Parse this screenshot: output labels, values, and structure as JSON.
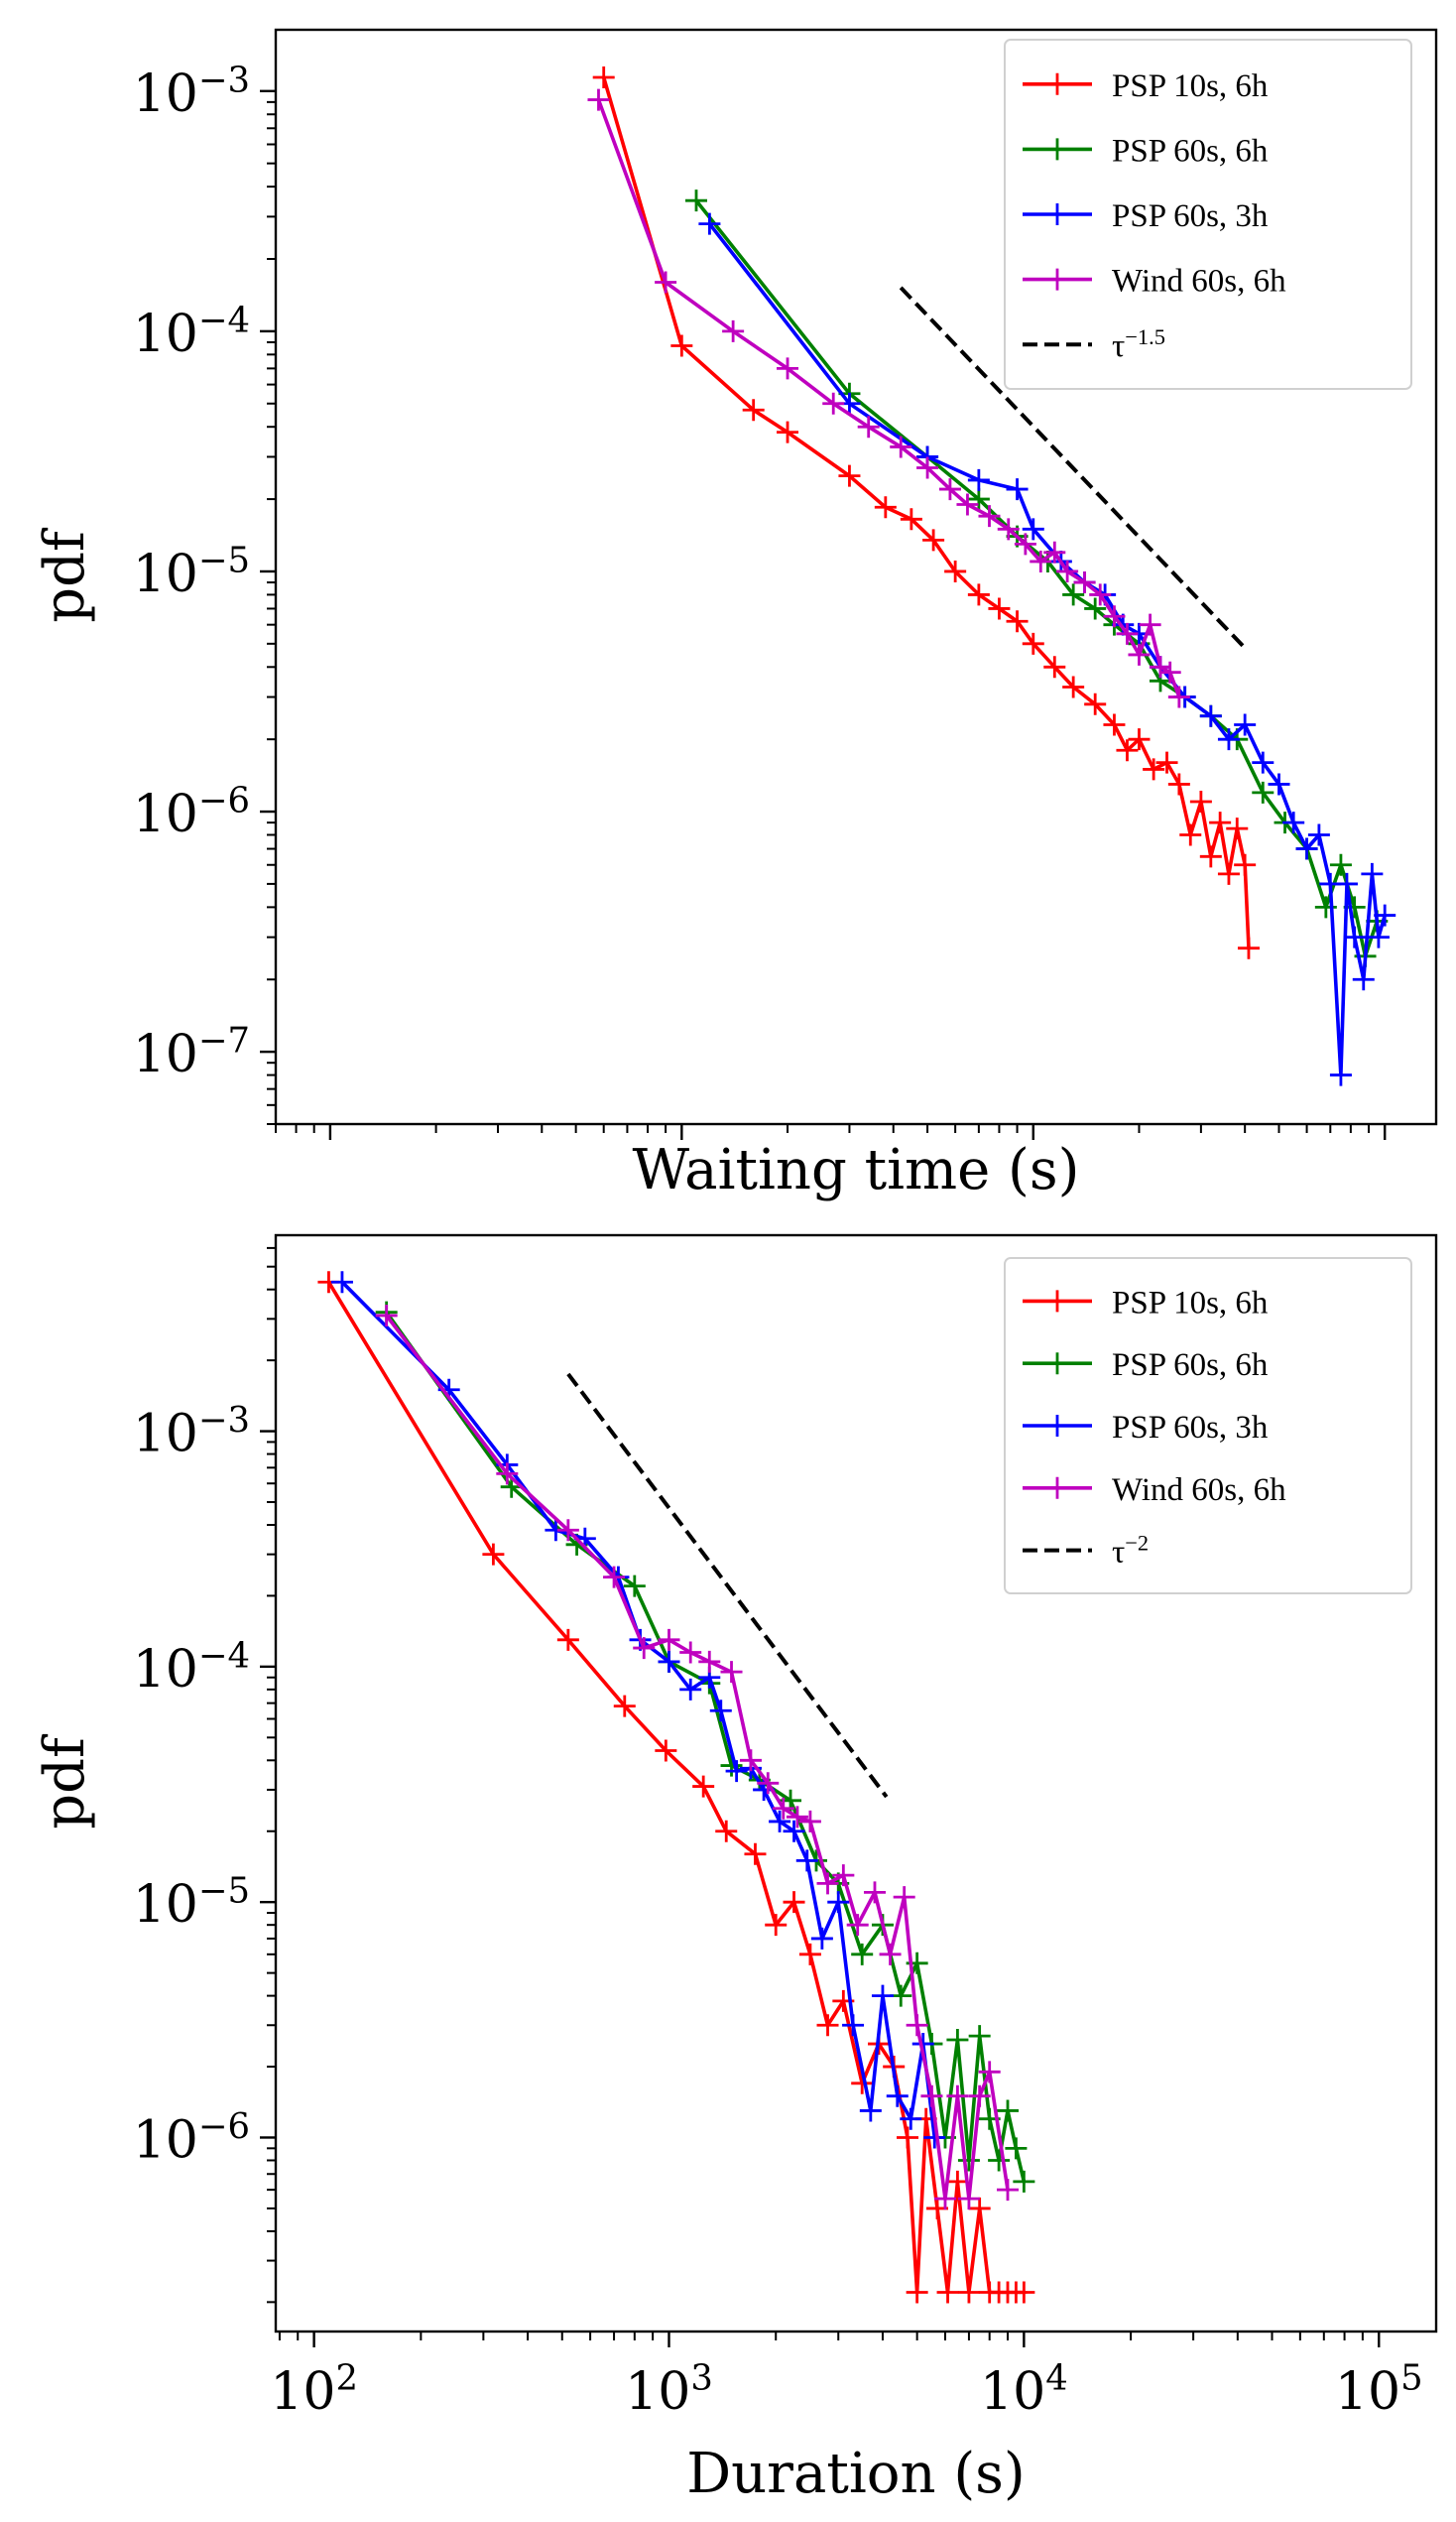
{
  "chart_data": [
    {
      "type": "line",
      "panel": "top",
      "xlabel": "Waiting time (s)",
      "ylabel": "pdf",
      "xscale": "log",
      "yscale": "log",
      "xlim": [
        70,
        140000
      ],
      "ylim": [
        5e-08,
        0.0018
      ],
      "x_ticks": [
        {
          "value": 100,
          "label": ""
        },
        {
          "value": 1000,
          "label": ""
        },
        {
          "value": 10000,
          "label": ""
        },
        {
          "value": 100000,
          "label": ""
        }
      ],
      "y_ticks": [
        {
          "value": 0.001,
          "base": "10",
          "exp": "−3"
        },
        {
          "value": 0.0001,
          "base": "10",
          "exp": "−4"
        },
        {
          "value": 1e-05,
          "base": "10",
          "exp": "−5"
        },
        {
          "value": 1e-06,
          "base": "10",
          "exp": "−6"
        },
        {
          "value": 1e-07,
          "base": "10",
          "exp": "−7"
        }
      ],
      "legend_position": "top-right",
      "series": [
        {
          "name": "PSP 10s, 6h",
          "color": "#ff0000",
          "x": [
            600,
            1000,
            1600,
            2000,
            3000,
            3800,
            4500,
            5200,
            6000,
            7000,
            8000,
            9000,
            10000,
            11500,
            13000,
            15000,
            17000,
            18500,
            20000,
            22000,
            24000,
            26000,
            28000,
            30000,
            32000,
            34000,
            36000,
            38000,
            40000,
            41000
          ],
          "y": [
            0.00114,
            8.7e-05,
            4.7e-05,
            3.8e-05,
            2.5e-05,
            1.85e-05,
            1.65e-05,
            1.35e-05,
            1e-05,
            8e-06,
            7e-06,
            6.2e-06,
            5e-06,
            4e-06,
            3.3e-06,
            2.8e-06,
            2.3e-06,
            1.8e-06,
            2e-06,
            1.5e-06,
            1.6e-06,
            1.3e-06,
            8e-07,
            1.1e-06,
            6.5e-07,
            9e-07,
            5.5e-07,
            8.5e-07,
            6e-07,
            2.7e-07
          ]
        },
        {
          "name": "PSP 60s, 6h",
          "color": "#008000",
          "x": [
            1100,
            3000,
            5000,
            7000,
            9000,
            11000,
            13000,
            15000,
            17000,
            20000,
            23000,
            27000,
            32000,
            38000,
            45000,
            52000,
            60000,
            68000,
            75000,
            82000,
            88000,
            95000
          ],
          "y": [
            0.00035,
            5.5e-05,
            3e-05,
            2e-05,
            1.4e-05,
            1.1e-05,
            8e-06,
            7e-06,
            6e-06,
            5e-06,
            3.5e-06,
            3e-06,
            2.5e-06,
            2e-06,
            1.2e-06,
            9e-07,
            7e-07,
            4e-07,
            6e-07,
            4e-07,
            2.5e-07,
            3.5e-07
          ]
        },
        {
          "name": "PSP 60s, 3h",
          "color": "#0000ff",
          "x": [
            1200,
            3000,
            5000,
            7000,
            9000,
            10000,
            12000,
            14000,
            16000,
            18000,
            20000,
            23000,
            27000,
            32000,
            36000,
            40000,
            45000,
            50000,
            55000,
            60000,
            65000,
            70000,
            75000,
            78000,
            82000,
            87000,
            92000,
            96000,
            100000
          ],
          "y": [
            0.00028,
            5e-05,
            3e-05,
            2.4e-05,
            2.2e-05,
            1.5e-05,
            1.1e-05,
            9e-06,
            8e-06,
            6e-06,
            5.5e-06,
            4e-06,
            3e-06,
            2.5e-06,
            2e-06,
            2.3e-06,
            1.6e-06,
            1.3e-06,
            9e-07,
            7e-07,
            8e-07,
            5e-07,
            8e-08,
            5e-07,
            3e-07,
            2e-07,
            5.5e-07,
            3e-07,
            3.7e-07
          ]
        },
        {
          "name": "Wind 60s, 6h",
          "color": "#bf00bf",
          "x": [
            580,
            900,
            1400,
            2000,
            2700,
            3400,
            4200,
            5000,
            5800,
            6500,
            7500,
            8500,
            9500,
            10500,
            11500,
            12500,
            14000,
            15500,
            17000,
            18500,
            20000,
            21500,
            23000,
            24500,
            26000
          ],
          "y": [
            0.00092,
            0.00016,
            0.0001,
            7e-05,
            5e-05,
            4e-05,
            3.3e-05,
            2.7e-05,
            2.2e-05,
            1.9e-05,
            1.7e-05,
            1.5e-05,
            1.3e-05,
            1.1e-05,
            1.2e-05,
            1e-05,
            9e-06,
            8e-06,
            6.5e-06,
            5.5e-06,
            4.5e-06,
            6e-06,
            4e-06,
            3.8e-06,
            3e-06
          ]
        },
        {
          "name": "τ^{−1.5}",
          "label_base": "τ",
          "label_exp": "−1.5",
          "color": "#000000",
          "dashed": true,
          "x": [
            4200,
            40000
          ],
          "y": [
            0.000152,
            4.8e-06
          ]
        }
      ]
    },
    {
      "type": "line",
      "panel": "bottom",
      "xlabel": "Duration (s)",
      "ylabel": "pdf",
      "xscale": "log",
      "yscale": "log",
      "xlim": [
        78,
        145000
      ],
      "ylim": [
        1.5e-07,
        0.0068
      ],
      "x_ticks": [
        {
          "value": 100,
          "base": "10",
          "exp": "2"
        },
        {
          "value": 1000,
          "base": "10",
          "exp": "3"
        },
        {
          "value": 10000,
          "base": "10",
          "exp": "4"
        },
        {
          "value": 100000,
          "base": "10",
          "exp": "5"
        }
      ],
      "y_ticks": [
        {
          "value": 0.001,
          "base": "10",
          "exp": "−3"
        },
        {
          "value": 0.0001,
          "base": "10",
          "exp": "−4"
        },
        {
          "value": 1e-05,
          "base": "10",
          "exp": "−5"
        },
        {
          "value": 1e-06,
          "base": "10",
          "exp": "−6"
        }
      ],
      "legend_position": "top-right",
      "series": [
        {
          "name": "PSP 10s, 6h",
          "color": "#ff0000",
          "x": [
            110,
            320,
            520,
            750,
            980,
            1250,
            1450,
            1750,
            2000,
            2250,
            2500,
            2800,
            3100,
            3500,
            3900,
            4300,
            4700,
            5000,
            5300,
            5700,
            6100,
            6500,
            7000,
            7500,
            8000,
            8500,
            9000,
            9500,
            10000
          ],
          "y": [
            0.0043,
            0.0003,
            0.00013,
            6.8e-05,
            4.4e-05,
            3.1e-05,
            2e-05,
            1.6e-05,
            8e-06,
            1e-05,
            6e-06,
            3e-06,
            3.8e-06,
            1.7e-06,
            2.5e-06,
            2e-06,
            1e-06,
            2.2e-07,
            1.2e-06,
            5e-07,
            2.2e-07,
            6.5e-07,
            2.2e-07,
            5e-07,
            2.2e-07,
            2.2e-07,
            2.2e-07,
            2.2e-07,
            2.2e-07
          ]
        },
        {
          "name": "PSP 60s, 6h",
          "color": "#008000",
          "x": [
            160,
            360,
            550,
            800,
            1000,
            1300,
            1500,
            1800,
            2200,
            2600,
            3000,
            3500,
            4000,
            4500,
            5000,
            5500,
            6000,
            6500,
            7000,
            7500,
            8000,
            8500,
            9000,
            9500,
            10000
          ],
          "y": [
            0.0032,
            0.00058,
            0.00033,
            0.00022,
            0.000105,
            8.5e-05,
            3.8e-05,
            3.3e-05,
            2.7e-05,
            1.5e-05,
            1.2e-05,
            6e-06,
            8e-06,
            4e-06,
            5.5e-06,
            2.5e-06,
            1e-06,
            2.6e-06,
            8e-07,
            2.7e-06,
            1.2e-06,
            8e-07,
            1.3e-06,
            9e-07,
            6.5e-07
          ]
        },
        {
          "name": "PSP 60s, 3h",
          "color": "#0000ff",
          "x": [
            120,
            240,
            350,
            480,
            580,
            720,
            830,
            1000,
            1150,
            1300,
            1400,
            1550,
            1700,
            1850,
            2050,
            2250,
            2450,
            2700,
            3000,
            3300,
            3700,
            4000,
            4400,
            4800,
            5200,
            5600
          ],
          "y": [
            0.0043,
            0.0015,
            0.00072,
            0.00038,
            0.00035,
            0.00024,
            0.00013,
            0.000105,
            8e-05,
            9e-05,
            6.5e-05,
            3.6e-05,
            3.7e-05,
            3e-05,
            2.2e-05,
            2e-05,
            1.5e-05,
            7e-06,
            1e-05,
            3e-06,
            1.3e-06,
            4e-06,
            1.5e-06,
            1.2e-06,
            2.5e-06,
            1e-06
          ]
        },
        {
          "name": "Wind 60s, 6h",
          "color": "#bf00bf",
          "x": [
            160,
            350,
            520,
            700,
            850,
            1000,
            1150,
            1300,
            1500,
            1700,
            1900,
            2100,
            2300,
            2500,
            2800,
            3100,
            3400,
            3800,
            4200,
            4600,
            5000,
            5500,
            6000,
            6500,
            7000,
            7500,
            8000,
            9000
          ],
          "y": [
            0.0031,
            0.00066,
            0.00038,
            0.00024,
            0.00012,
            0.00013,
            0.000115,
            0.000105,
            9.5e-05,
            4e-05,
            3.2e-05,
            2.5e-05,
            2.3e-05,
            2.2e-05,
            1.2e-05,
            1.3e-05,
            8e-06,
            1.1e-05,
            6e-06,
            1.05e-05,
            3e-06,
            1.5e-06,
            5.5e-07,
            1.5e-06,
            5.5e-07,
            1.5e-06,
            1.9e-06,
            6e-07
          ]
        },
        {
          "name": "τ^{−2}",
          "label_base": "τ",
          "label_exp": "−2",
          "color": "#000000",
          "dashed": true,
          "x": [
            520,
            4100
          ],
          "y": [
            0.00175,
            2.8e-05
          ]
        }
      ]
    }
  ]
}
